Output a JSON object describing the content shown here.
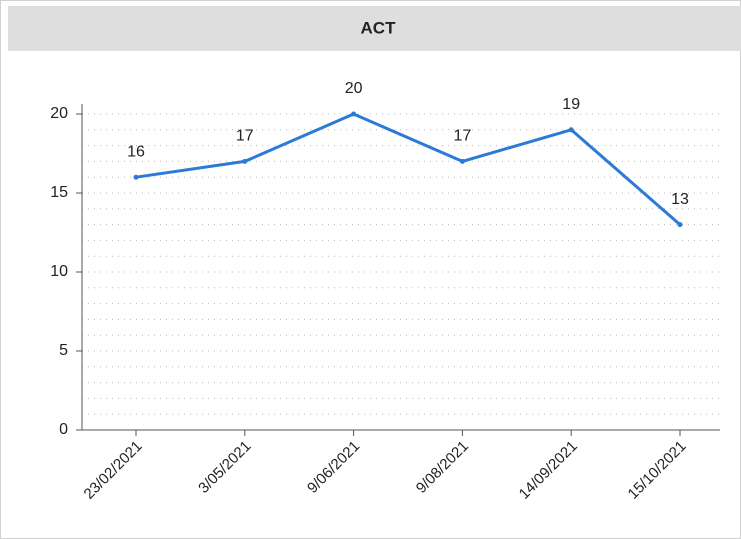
{
  "chart_data": {
    "type": "line",
    "title": "ACT",
    "categories": [
      "23/02/2021",
      "3/05/2021",
      "9/06/2021",
      "9/08/2021",
      "14/09/2021",
      "15/10/2021"
    ],
    "series": [
      {
        "name": "ACT",
        "color": "#2b7bd6",
        "values": [
          16,
          17,
          20,
          17,
          19,
          13
        ]
      }
    ],
    "ylim": [
      0,
      20
    ],
    "yticks": [
      0,
      5,
      10,
      15,
      20
    ],
    "grid": true
  }
}
